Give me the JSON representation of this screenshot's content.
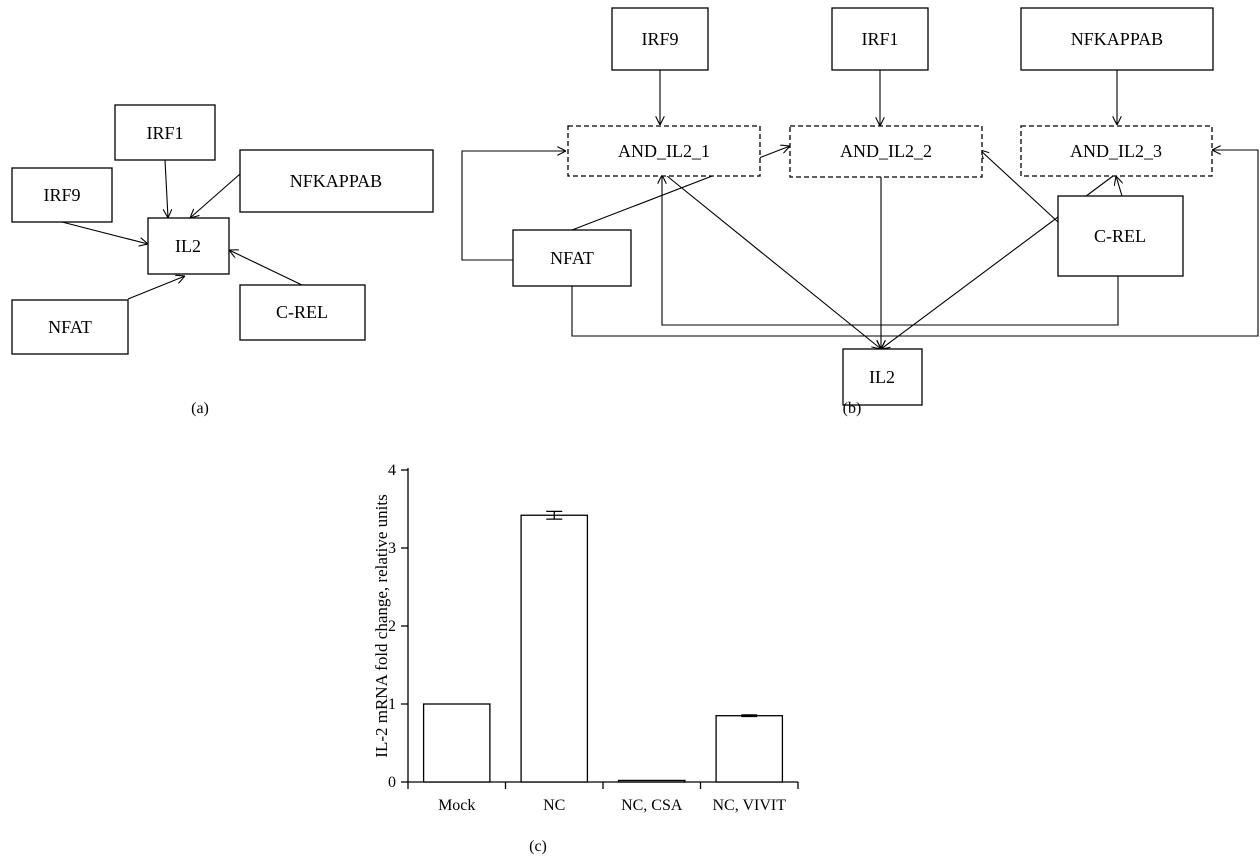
{
  "panel_a": {
    "label": "(a)",
    "nodes": {
      "irf1": "IRF1",
      "irf9": "IRF9",
      "nfkappab": "NFKAPPAB",
      "il2": "IL2",
      "nfat": "NFAT",
      "crel": "C-REL"
    }
  },
  "panel_b": {
    "label": "(b)",
    "nodes": {
      "irf9": "IRF9",
      "irf1": "IRF1",
      "nfkappab": "NFKAPPAB",
      "and1": "AND_IL2_1",
      "and2": "AND_IL2_2",
      "and3": "AND_IL2_3",
      "nfat": "NFAT",
      "crel": "C-REL",
      "il2": "IL2"
    }
  },
  "panel_c": {
    "label": "(c)"
  },
  "chart_data": {
    "type": "bar",
    "categories": [
      "Mock",
      "NC",
      "NC, CSA",
      "NC, VIVIT"
    ],
    "values": [
      1.0,
      3.42,
      0.02,
      0.85
    ],
    "errors": [
      0,
      0.05,
      0,
      0.01
    ],
    "ylabel": "IL-2 mRNA fold change, relative units",
    "ylim": [
      0,
      4
    ],
    "yticks": [
      0,
      1,
      2,
      3,
      4
    ],
    "grid": false
  }
}
